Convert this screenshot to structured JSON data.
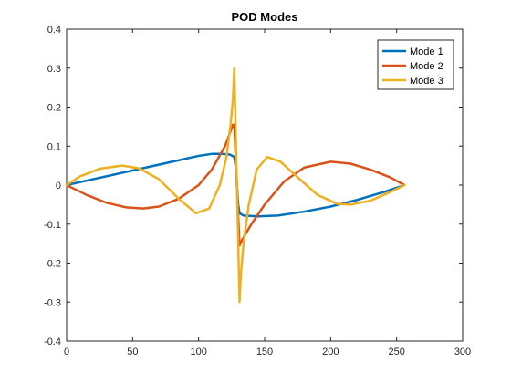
{
  "chart_data": {
    "type": "line",
    "title": "POD Modes",
    "xlabel": "",
    "ylabel": "",
    "xlim": [
      0,
      300
    ],
    "ylim": [
      -0.4,
      0.4
    ],
    "xticks": [
      0,
      50,
      100,
      150,
      200,
      250,
      300
    ],
    "yticks": [
      -0.4,
      -0.3,
      -0.2,
      -0.1,
      0,
      0.1,
      0.2,
      0.3,
      0.4
    ],
    "grid": false,
    "legend_position": "top-right",
    "series": [
      {
        "name": "Mode 1",
        "color": "#0072BD",
        "points": [
          [
            0,
            0
          ],
          [
            20,
            0.015
          ],
          [
            40,
            0.03
          ],
          [
            60,
            0.045
          ],
          [
            80,
            0.06
          ],
          [
            100,
            0.075
          ],
          [
            110,
            0.08
          ],
          [
            118,
            0.08
          ],
          [
            124,
            0.078
          ],
          [
            127,
            0.072
          ],
          [
            128,
            0.05
          ],
          [
            129,
            0
          ],
          [
            130,
            -0.05
          ],
          [
            131,
            -0.072
          ],
          [
            134,
            -0.078
          ],
          [
            145,
            -0.08
          ],
          [
            160,
            -0.078
          ],
          [
            180,
            -0.068
          ],
          [
            200,
            -0.055
          ],
          [
            220,
            -0.038
          ],
          [
            240,
            -0.018
          ],
          [
            256,
            0
          ]
        ]
      },
      {
        "name": "Mode 2",
        "color": "#D95319",
        "points": [
          [
            0,
            0
          ],
          [
            15,
            -0.025
          ],
          [
            30,
            -0.045
          ],
          [
            45,
            -0.057
          ],
          [
            58,
            -0.06
          ],
          [
            70,
            -0.055
          ],
          [
            85,
            -0.035
          ],
          [
            100,
            0
          ],
          [
            110,
            0.04
          ],
          [
            120,
            0.1
          ],
          [
            126,
            0.155
          ],
          [
            127,
            0.155
          ],
          [
            128,
            0.08
          ],
          [
            129,
            0
          ],
          [
            130,
            -0.08
          ],
          [
            131,
            -0.155
          ],
          [
            133,
            -0.14
          ],
          [
            140,
            -0.1
          ],
          [
            150,
            -0.05
          ],
          [
            165,
            0.01
          ],
          [
            180,
            0.045
          ],
          [
            200,
            0.06
          ],
          [
            215,
            0.055
          ],
          [
            230,
            0.04
          ],
          [
            245,
            0.02
          ],
          [
            256,
            0
          ]
        ]
      },
      {
        "name": "Mode 3",
        "color": "#EDB120",
        "points": [
          [
            0,
            0
          ],
          [
            10,
            0.022
          ],
          [
            25,
            0.042
          ],
          [
            42,
            0.05
          ],
          [
            55,
            0.043
          ],
          [
            70,
            0.015
          ],
          [
            85,
            -0.035
          ],
          [
            98,
            -0.072
          ],
          [
            108,
            -0.06
          ],
          [
            116,
            0
          ],
          [
            121,
            0.07
          ],
          [
            124,
            0.15
          ],
          [
            126,
            0.22
          ],
          [
            127,
            0.3
          ],
          [
            128,
            0.15
          ],
          [
            129,
            0
          ],
          [
            130,
            -0.15
          ],
          [
            131,
            -0.3
          ],
          [
            132,
            -0.23
          ],
          [
            134,
            -0.15
          ],
          [
            138,
            -0.05
          ],
          [
            144,
            0.04
          ],
          [
            152,
            0.072
          ],
          [
            162,
            0.06
          ],
          [
            175,
            0.02
          ],
          [
            190,
            -0.025
          ],
          [
            205,
            -0.048
          ],
          [
            215,
            -0.05
          ],
          [
            230,
            -0.04
          ],
          [
            245,
            -0.018
          ],
          [
            256,
            0
          ]
        ]
      }
    ]
  }
}
